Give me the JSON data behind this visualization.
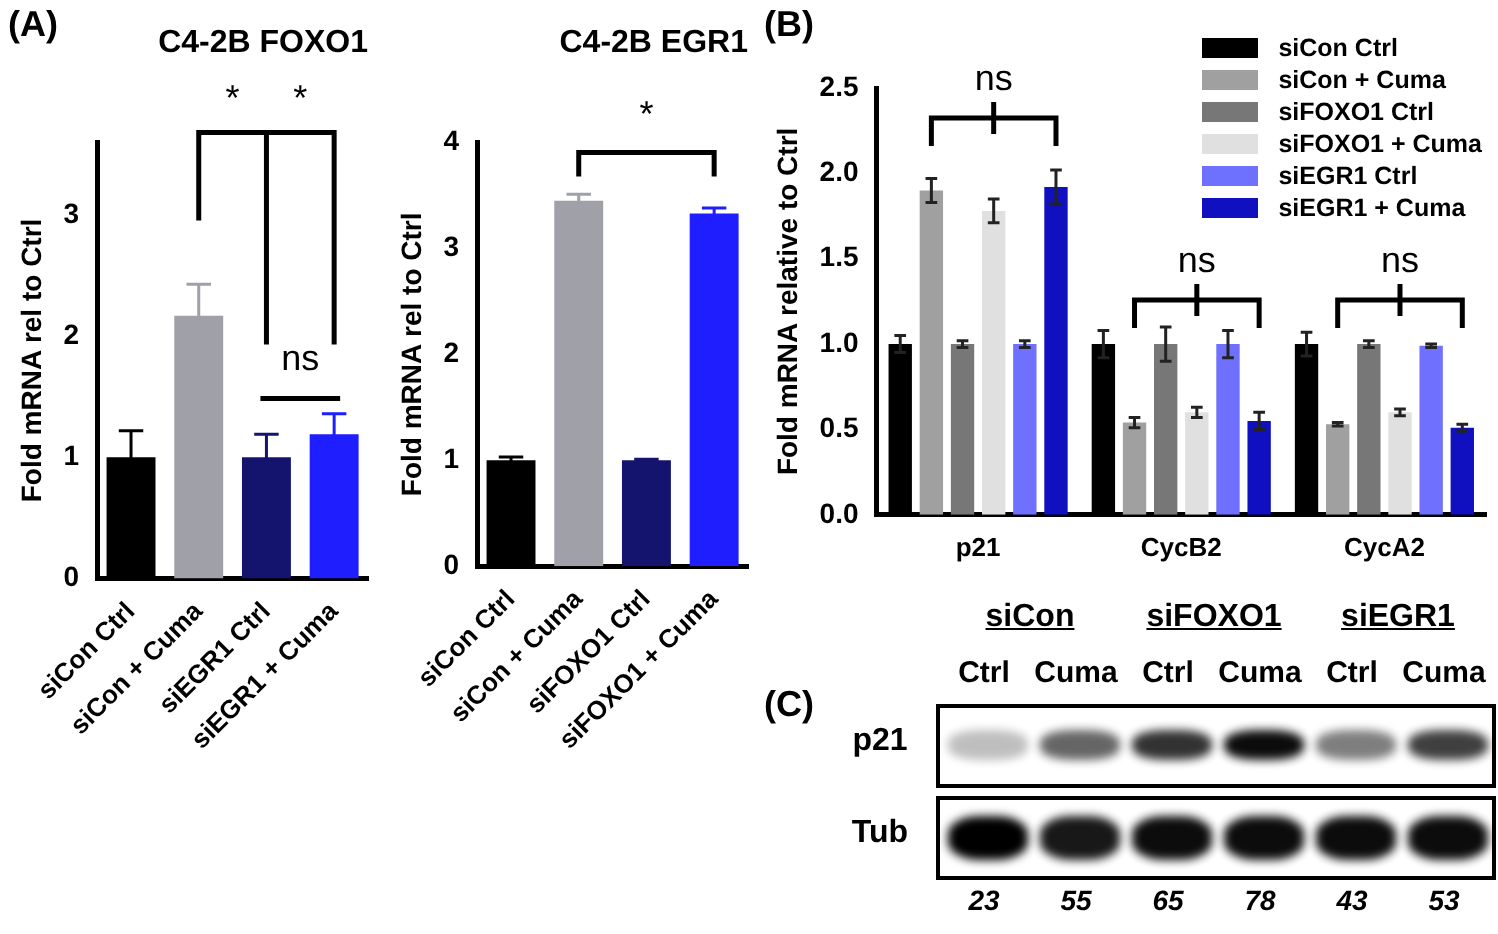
{
  "chart_data": [
    {
      "type": "bar",
      "title": "C4-2B FOXO1",
      "ylabel": "Fold mRNA rel to Ctrl",
      "categories": [
        "siCon Ctrl",
        "siCon + Cuma",
        "siEGR1 Ctrl",
        "siEGR1 + Cuma"
      ],
      "values": [
        1.0,
        2.17,
        1.0,
        1.19
      ],
      "errors": [
        0.22,
        0.26,
        0.19,
        0.17
      ],
      "colors": [
        "#000000",
        "#a0a0a8",
        "#14146e",
        "#1e1eff"
      ],
      "ylim": [
        0,
        3.6
      ],
      "yticks": [
        0,
        1,
        2,
        3
      ],
      "grid": false,
      "legend": false,
      "annotations": [
        "(A)",
        "*",
        "*",
        "ns"
      ]
    },
    {
      "type": "bar",
      "title": "C4-2B EGR1",
      "ylabel": "Fold mRNA rel to Ctrl",
      "categories": [
        "siCon Ctrl",
        "siCon + Cuma",
        "siFOXO1 Ctrl",
        "siFOXO1 + Cuma"
      ],
      "values": [
        1.0,
        3.45,
        1.0,
        3.33
      ],
      "errors": [
        0.03,
        0.06,
        0.01,
        0.05
      ],
      "colors": [
        "#000000",
        "#a0a0a8",
        "#14146e",
        "#1e1eff"
      ],
      "ylim": [
        0,
        4
      ],
      "yticks": [
        0,
        1,
        2,
        3,
        4
      ],
      "grid": false,
      "legend": false,
      "annotations": [
        "*"
      ]
    },
    {
      "type": "bar",
      "ylabel": "Fold mRNA relative to Ctrl",
      "categories": [
        "p21",
        "CycB2",
        "CycA2"
      ],
      "series": [
        {
          "name": "siCon Ctrl",
          "color": "#000000",
          "values": [
            1.0,
            1.0,
            1.0
          ],
          "errors": [
            0.05,
            0.08,
            0.07
          ]
        },
        {
          "name": "siCon + Cuma",
          "color": "#a0a0a0",
          "values": [
            1.9,
            0.54,
            0.53
          ],
          "errors": [
            0.07,
            0.03,
            0.01
          ]
        },
        {
          "name": "siFOXO1 Ctrl",
          "color": "#777777",
          "values": [
            1.0,
            1.0,
            1.0
          ],
          "errors": [
            0.02,
            0.1,
            0.02
          ]
        },
        {
          "name": "siFOXO1 + Cuma",
          "color": "#e0e0e0",
          "values": [
            1.78,
            0.6,
            0.6
          ],
          "errors": [
            0.07,
            0.03,
            0.02
          ]
        },
        {
          "name": "siEGR1 Ctrl",
          "color": "#7070ff",
          "values": [
            1.0,
            1.0,
            0.99
          ],
          "errors": [
            0.02,
            0.08,
            0.01
          ]
        },
        {
          "name": "siEGR1 + Cuma",
          "color": "#1010c0",
          "values": [
            1.92,
            0.55,
            0.51
          ],
          "errors": [
            0.1,
            0.05,
            0.02
          ]
        }
      ],
      "ylim": [
        0,
        2.5
      ],
      "yticks": [
        {
          "value": 0,
          "label": "0.0"
        },
        0.5,
        {
          "value": 1,
          "label": "1.0"
        },
        1.5,
        {
          "value": 2,
          "label": "2.0"
        },
        2.5
      ],
      "grid": false,
      "legend": "top right",
      "annotations": [
        "(B)",
        "ns",
        "ns",
        "ns"
      ]
    },
    {
      "type": "other",
      "categories": [
        "Ctrl",
        "Cuma",
        "Ctrl",
        "Cuma",
        "Ctrl",
        "Cuma"
      ],
      "values": [
        23,
        55,
        65,
        78,
        43,
        53
      ],
      "data_labels": true,
      "annotations": [
        "(C)",
        "siCon",
        "siFOXO1",
        "siEGR1",
        "p21",
        "Tub"
      ]
    }
  ]
}
